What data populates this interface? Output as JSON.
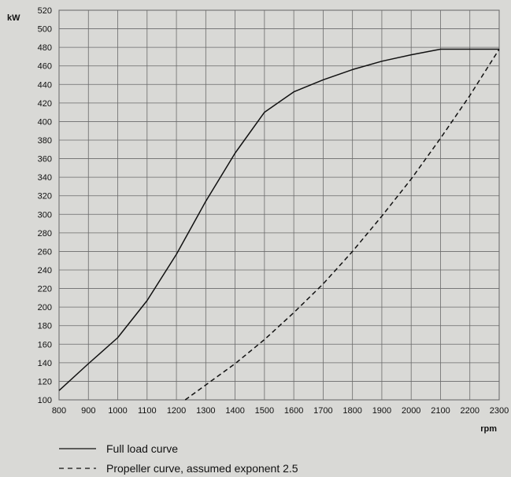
{
  "chart_data": {
    "type": "line",
    "xlabel": "rpm",
    "ylabel": "kW",
    "xlim": [
      800,
      2300
    ],
    "ylim": [
      100,
      520
    ],
    "x_ticks": [
      800,
      900,
      1000,
      1100,
      1200,
      1300,
      1400,
      1500,
      1600,
      1700,
      1800,
      1900,
      2000,
      2100,
      2200,
      2300
    ],
    "y_ticks": [
      100,
      120,
      140,
      160,
      180,
      200,
      220,
      240,
      260,
      280,
      300,
      320,
      340,
      360,
      380,
      400,
      420,
      440,
      460,
      480,
      500,
      520
    ],
    "grid": true,
    "legend_position": "bottom-left",
    "series": [
      {
        "name": "Full load curve",
        "style": "solid",
        "color": "#111111",
        "x": [
          800,
          900,
          1000,
          1100,
          1200,
          1300,
          1400,
          1500,
          1600,
          1700,
          1800,
          1900,
          2000,
          2100,
          2200,
          2300
        ],
        "y": [
          110,
          139,
          167,
          207,
          257,
          314,
          366,
          410,
          432,
          445,
          456,
          465,
          472,
          478,
          478,
          478
        ]
      },
      {
        "name": "Propeller curve, assumed exponent 2.5",
        "style": "dashed",
        "color": "#111111",
        "x": [
          1230,
          1300,
          1400,
          1500,
          1600,
          1700,
          1800,
          1900,
          2000,
          2100,
          2200,
          2300
        ],
        "y": [
          100,
          116,
          139,
          165,
          194,
          225,
          260,
          298,
          338,
          382,
          428,
          478
        ]
      }
    ]
  }
}
